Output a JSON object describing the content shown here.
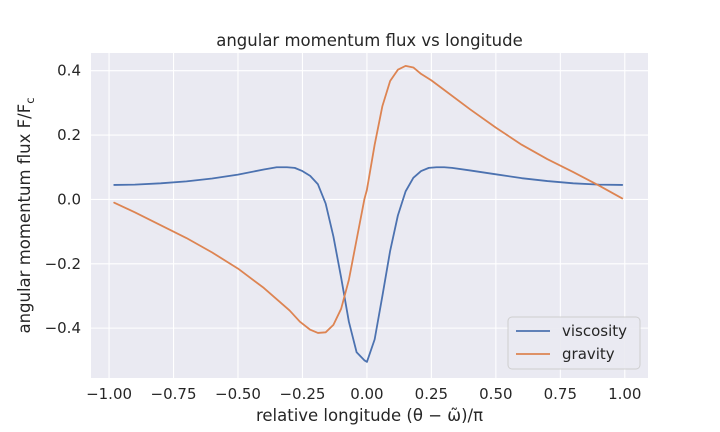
{
  "chart_data": {
    "type": "line",
    "title": "angular momentum flux vs longitude",
    "xlabel": "relative longitude (θ − ω̃)/π",
    "ylabel": "angular momentum flux F/F",
    "ylabel_subscript": "c",
    "xlim": [
      -1.07,
      1.09
    ],
    "ylim": [
      -0.555,
      0.455
    ],
    "xticks": [
      -1.0,
      -0.75,
      -0.5,
      -0.25,
      0.0,
      0.25,
      0.5,
      0.75,
      1.0
    ],
    "xtick_labels": [
      "−1.00",
      "−0.75",
      "−0.50",
      "−0.25",
      "0.00",
      "0.25",
      "0.50",
      "0.75",
      "1.00"
    ],
    "yticks": [
      -0.4,
      -0.2,
      0.0,
      0.2,
      0.4
    ],
    "ytick_labels": [
      "−0.4",
      "−0.2",
      "0.0",
      "0.2",
      "0.4"
    ],
    "grid": true,
    "legend_position": "lower right",
    "background": "#eaeaf2",
    "series": [
      {
        "name": "viscosity",
        "color": "#4c72b0",
        "x": [
          -0.98,
          -0.9,
          -0.8,
          -0.7,
          -0.6,
          -0.5,
          -0.4,
          -0.35,
          -0.31,
          -0.28,
          -0.25,
          -0.22,
          -0.19,
          -0.16,
          -0.13,
          -0.1,
          -0.07,
          -0.04,
          -0.01,
          0.0,
          0.03,
          0.06,
          0.09,
          0.12,
          0.15,
          0.18,
          0.21,
          0.24,
          0.27,
          0.3,
          0.33,
          0.4,
          0.5,
          0.6,
          0.7,
          0.8,
          0.9,
          0.99
        ],
        "y": [
          0.045,
          0.046,
          0.05,
          0.056,
          0.065,
          0.077,
          0.093,
          0.1,
          0.1,
          0.098,
          0.088,
          0.073,
          0.047,
          -0.013,
          -0.115,
          -0.243,
          -0.38,
          -0.475,
          -0.5,
          -0.505,
          -0.435,
          -0.3,
          -0.16,
          -0.05,
          0.025,
          0.067,
          0.088,
          0.098,
          0.1,
          0.1,
          0.098,
          0.09,
          0.078,
          0.066,
          0.057,
          0.05,
          0.046,
          0.045
        ]
      },
      {
        "name": "gravity",
        "color": "#dd8452",
        "x": [
          -0.98,
          -0.9,
          -0.8,
          -0.7,
          -0.6,
          -0.5,
          -0.4,
          -0.35,
          -0.3,
          -0.26,
          -0.22,
          -0.19,
          -0.16,
          -0.13,
          -0.1,
          -0.07,
          -0.04,
          -0.01,
          0.0,
          0.03,
          0.06,
          0.09,
          0.12,
          0.15,
          0.18,
          0.21,
          0.25,
          0.3,
          0.4,
          0.5,
          0.6,
          0.7,
          0.8,
          0.9,
          0.99
        ],
        "y": [
          -0.01,
          -0.04,
          -0.08,
          -0.12,
          -0.165,
          -0.215,
          -0.275,
          -0.31,
          -0.345,
          -0.38,
          -0.405,
          -0.415,
          -0.413,
          -0.39,
          -0.34,
          -0.25,
          -0.125,
          0.0,
          0.03,
          0.17,
          0.29,
          0.368,
          0.403,
          0.415,
          0.41,
          0.39,
          0.37,
          0.34,
          0.28,
          0.223,
          0.17,
          0.125,
          0.085,
          0.043,
          0.003
        ]
      }
    ]
  }
}
